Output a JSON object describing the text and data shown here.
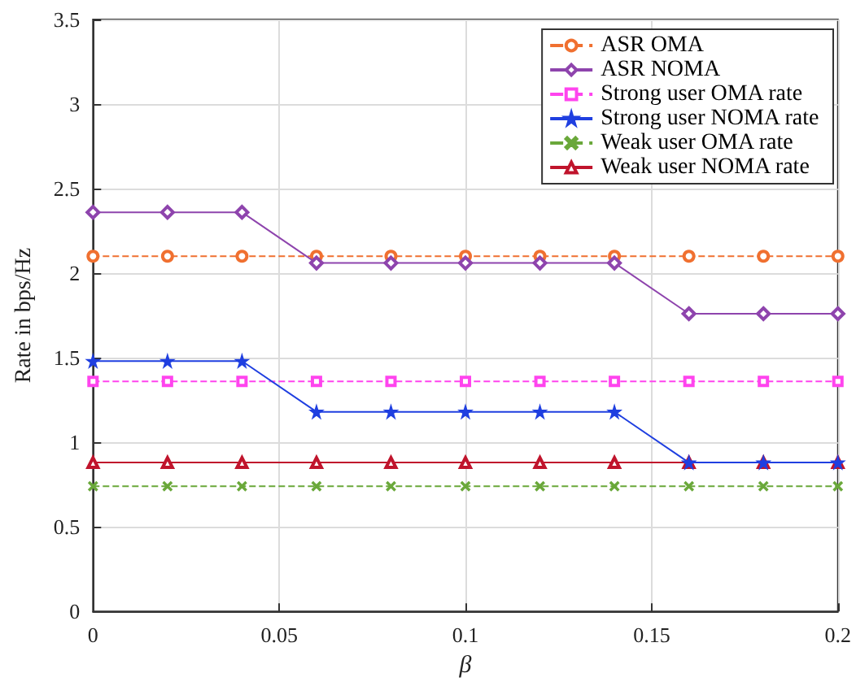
{
  "chart_data": {
    "type": "line",
    "xlabel": "β",
    "ylabel": "Rate in bps/Hz",
    "x": [
      0,
      0.02,
      0.04,
      0.06,
      0.08,
      0.1,
      0.12,
      0.14,
      0.16,
      0.18,
      0.2
    ],
    "xlim": [
      0,
      0.2
    ],
    "xticks": [
      0,
      0.05,
      0.1,
      0.15,
      0.2
    ],
    "ylim": [
      0,
      3.5
    ],
    "yticks": [
      0,
      0.5,
      1,
      1.5,
      2,
      2.5,
      3,
      3.5
    ],
    "grid": true,
    "legend": "top right",
    "series": [
      {
        "name": "ASR OMA",
        "color": "#f07030",
        "marker": "circle",
        "line_style": "dashed",
        "values": [
          2.1,
          2.1,
          2.1,
          2.1,
          2.1,
          2.1,
          2.1,
          2.1,
          2.1,
          2.1,
          2.1
        ]
      },
      {
        "name": "ASR NOMA",
        "color": "#8e44ad",
        "marker": "diamond",
        "line_style": "solid",
        "values": [
          2.36,
          2.36,
          2.36,
          2.06,
          2.06,
          2.06,
          2.06,
          2.06,
          1.76,
          1.76,
          1.76
        ]
      },
      {
        "name": "Strong user OMA rate",
        "color": "#ff44ee",
        "marker": "square",
        "line_style": "dashed",
        "values": [
          1.36,
          1.36,
          1.36,
          1.36,
          1.36,
          1.36,
          1.36,
          1.36,
          1.36,
          1.36,
          1.36
        ]
      },
      {
        "name": "Strong user NOMA rate",
        "color": "#1f3fe0",
        "marker": "star",
        "line_style": "solid",
        "values": [
          1.48,
          1.48,
          1.48,
          1.18,
          1.18,
          1.18,
          1.18,
          1.18,
          0.88,
          0.88,
          0.88
        ]
      },
      {
        "name": "Weak user OMA rate",
        "color": "#6aa83a",
        "marker": "cross",
        "line_style": "dashed",
        "values": [
          0.74,
          0.74,
          0.74,
          0.74,
          0.74,
          0.74,
          0.74,
          0.74,
          0.74,
          0.74,
          0.74
        ]
      },
      {
        "name": "Weak user NOMA rate",
        "color": "#c0142c",
        "marker": "triangle",
        "line_style": "solid",
        "values": [
          0.88,
          0.88,
          0.88,
          0.88,
          0.88,
          0.88,
          0.88,
          0.88,
          0.88,
          0.88,
          0.88
        ]
      }
    ]
  }
}
